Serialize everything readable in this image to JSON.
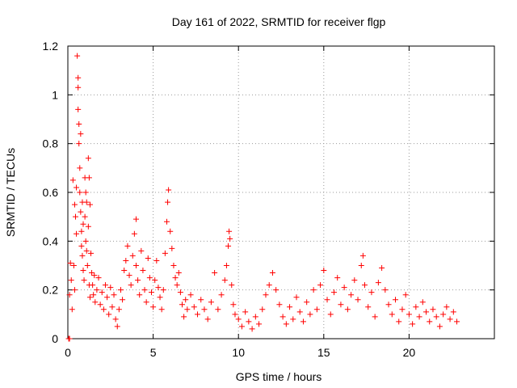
{
  "chart_data": {
    "type": "scatter",
    "title": "Day 161 of 2022, SRMTID for receiver flgp",
    "xlabel": "GPS time / hours",
    "ylabel": "SRMTID / TECUs",
    "xlim": [
      0,
      25
    ],
    "ylim": [
      0,
      1.2
    ],
    "x_ticks": [
      0,
      5,
      10,
      15,
      20
    ],
    "x_tick_labels": [
      "0",
      "5",
      "10",
      "15",
      "20"
    ],
    "y_ticks": [
      0,
      0.2,
      0.4,
      0.6,
      0.8,
      1.0,
      1.2
    ],
    "y_tick_labels": [
      "0",
      "0.2",
      "0.4",
      "0.6",
      "0.8",
      "1",
      "1.2"
    ],
    "grid": true,
    "marker": "+",
    "color": "#ff0000",
    "series": [
      {
        "name": "SRMTID",
        "points": [
          [
            0.05,
            0.0
          ],
          [
            0.1,
            0.0
          ],
          [
            0.1,
            0.18
          ],
          [
            0.15,
            0.31
          ],
          [
            0.2,
            0.24
          ],
          [
            0.25,
            0.12
          ],
          [
            0.3,
            0.65
          ],
          [
            0.35,
            0.3
          ],
          [
            0.4,
            0.2
          ],
          [
            0.4,
            0.55
          ],
          [
            0.45,
            0.5
          ],
          [
            0.5,
            0.62
          ],
          [
            0.5,
            0.43
          ],
          [
            0.55,
            1.16
          ],
          [
            0.6,
            1.07
          ],
          [
            0.6,
            1.03
          ],
          [
            0.6,
            0.94
          ],
          [
            0.65,
            0.88
          ],
          [
            0.65,
            0.8
          ],
          [
            0.7,
            0.7
          ],
          [
            0.7,
            0.6
          ],
          [
            0.75,
            0.52
          ],
          [
            0.75,
            0.84
          ],
          [
            0.8,
            0.44
          ],
          [
            0.8,
            0.38
          ],
          [
            0.85,
            0.34
          ],
          [
            0.85,
            0.56
          ],
          [
            0.9,
            0.28
          ],
          [
            0.9,
            0.47
          ],
          [
            0.95,
            0.24
          ],
          [
            1.0,
            0.66
          ],
          [
            1.0,
            0.5
          ],
          [
            1.05,
            0.6
          ],
          [
            1.05,
            0.4
          ],
          [
            1.1,
            0.36
          ],
          [
            1.1,
            0.56
          ],
          [
            1.15,
            0.3
          ],
          [
            1.2,
            0.74
          ],
          [
            1.2,
            0.46
          ],
          [
            1.25,
            0.66
          ],
          [
            1.25,
            0.22
          ],
          [
            1.3,
            0.55
          ],
          [
            1.3,
            0.17
          ],
          [
            1.35,
            0.35
          ],
          [
            1.4,
            0.27
          ],
          [
            1.45,
            0.22
          ],
          [
            1.5,
            0.18
          ],
          [
            1.55,
            0.26
          ],
          [
            1.6,
            0.15
          ],
          [
            1.7,
            0.2
          ],
          [
            1.8,
            0.25
          ],
          [
            1.9,
            0.14
          ],
          [
            2.0,
            0.19
          ],
          [
            2.1,
            0.12
          ],
          [
            2.2,
            0.22
          ],
          [
            2.3,
            0.17
          ],
          [
            2.4,
            0.1
          ],
          [
            2.5,
            0.21
          ],
          [
            2.6,
            0.13
          ],
          [
            2.7,
            0.18
          ],
          [
            2.8,
            0.08
          ],
          [
            2.9,
            0.05
          ],
          [
            3.0,
            0.12
          ],
          [
            3.1,
            0.2
          ],
          [
            3.2,
            0.16
          ],
          [
            3.3,
            0.28
          ],
          [
            3.4,
            0.32
          ],
          [
            3.5,
            0.38
          ],
          [
            3.6,
            0.26
          ],
          [
            3.7,
            0.22
          ],
          [
            3.8,
            0.34
          ],
          [
            3.9,
            0.43
          ],
          [
            4.0,
            0.49
          ],
          [
            4.0,
            0.3
          ],
          [
            4.1,
            0.24
          ],
          [
            4.2,
            0.18
          ],
          [
            4.3,
            0.36
          ],
          [
            4.4,
            0.28
          ],
          [
            4.5,
            0.2
          ],
          [
            4.6,
            0.15
          ],
          [
            4.7,
            0.33
          ],
          [
            4.8,
            0.25
          ],
          [
            4.9,
            0.19
          ],
          [
            5.0,
            0.13
          ],
          [
            5.1,
            0.24
          ],
          [
            5.2,
            0.32
          ],
          [
            5.3,
            0.21
          ],
          [
            5.4,
            0.17
          ],
          [
            5.5,
            0.12
          ],
          [
            5.6,
            0.2
          ],
          [
            5.7,
            0.35
          ],
          [
            5.8,
            0.48
          ],
          [
            5.85,
            0.56
          ],
          [
            5.9,
            0.61
          ],
          [
            6.0,
            0.44
          ],
          [
            6.1,
            0.37
          ],
          [
            6.2,
            0.3
          ],
          [
            6.3,
            0.25
          ],
          [
            6.4,
            0.22
          ],
          [
            6.5,
            0.27
          ],
          [
            6.6,
            0.19
          ],
          [
            6.7,
            0.14
          ],
          [
            6.8,
            0.09
          ],
          [
            6.9,
            0.16
          ],
          [
            7.0,
            0.12
          ],
          [
            7.2,
            0.18
          ],
          [
            7.4,
            0.13
          ],
          [
            7.6,
            0.1
          ],
          [
            7.8,
            0.16
          ],
          [
            8.0,
            0.12
          ],
          [
            8.2,
            0.08
          ],
          [
            8.4,
            0.15
          ],
          [
            8.6,
            0.27
          ],
          [
            8.8,
            0.12
          ],
          [
            9.0,
            0.18
          ],
          [
            9.2,
            0.24
          ],
          [
            9.3,
            0.3
          ],
          [
            9.4,
            0.38
          ],
          [
            9.45,
            0.44
          ],
          [
            9.5,
            0.41
          ],
          [
            9.6,
            0.22
          ],
          [
            9.7,
            0.14
          ],
          [
            9.8,
            0.1
          ],
          [
            10.0,
            0.08
          ],
          [
            10.2,
            0.05
          ],
          [
            10.4,
            0.11
          ],
          [
            10.6,
            0.07
          ],
          [
            10.8,
            0.04
          ],
          [
            11.0,
            0.09
          ],
          [
            11.2,
            0.06
          ],
          [
            11.4,
            0.12
          ],
          [
            11.6,
            0.18
          ],
          [
            11.8,
            0.22
          ],
          [
            12.0,
            0.27
          ],
          [
            12.2,
            0.2
          ],
          [
            12.4,
            0.14
          ],
          [
            12.6,
            0.09
          ],
          [
            12.8,
            0.06
          ],
          [
            13.0,
            0.13
          ],
          [
            13.2,
            0.08
          ],
          [
            13.4,
            0.17
          ],
          [
            13.6,
            0.11
          ],
          [
            13.8,
            0.07
          ],
          [
            14.0,
            0.15
          ],
          [
            14.2,
            0.1
          ],
          [
            14.4,
            0.2
          ],
          [
            14.6,
            0.12
          ],
          [
            14.8,
            0.22
          ],
          [
            15.0,
            0.28
          ],
          [
            15.2,
            0.16
          ],
          [
            15.4,
            0.1
          ],
          [
            15.6,
            0.19
          ],
          [
            15.8,
            0.25
          ],
          [
            16.0,
            0.14
          ],
          [
            16.2,
            0.21
          ],
          [
            16.4,
            0.12
          ],
          [
            16.6,
            0.18
          ],
          [
            16.8,
            0.24
          ],
          [
            17.0,
            0.16
          ],
          [
            17.2,
            0.3
          ],
          [
            17.3,
            0.34
          ],
          [
            17.4,
            0.22
          ],
          [
            17.6,
            0.13
          ],
          [
            17.8,
            0.19
          ],
          [
            18.0,
            0.09
          ],
          [
            18.2,
            0.23
          ],
          [
            18.4,
            0.29
          ],
          [
            18.6,
            0.2
          ],
          [
            18.8,
            0.14
          ],
          [
            19.0,
            0.1
          ],
          [
            19.2,
            0.16
          ],
          [
            19.4,
            0.07
          ],
          [
            19.6,
            0.12
          ],
          [
            19.8,
            0.18
          ],
          [
            20.0,
            0.1
          ],
          [
            20.2,
            0.06
          ],
          [
            20.4,
            0.13
          ],
          [
            20.6,
            0.09
          ],
          [
            20.8,
            0.15
          ],
          [
            21.0,
            0.11
          ],
          [
            21.2,
            0.07
          ],
          [
            21.4,
            0.12
          ],
          [
            21.6,
            0.09
          ],
          [
            21.8,
            0.05
          ],
          [
            22.0,
            0.1
          ],
          [
            22.2,
            0.13
          ],
          [
            22.4,
            0.08
          ],
          [
            22.6,
            0.11
          ],
          [
            22.8,
            0.07
          ]
        ]
      }
    ]
  }
}
